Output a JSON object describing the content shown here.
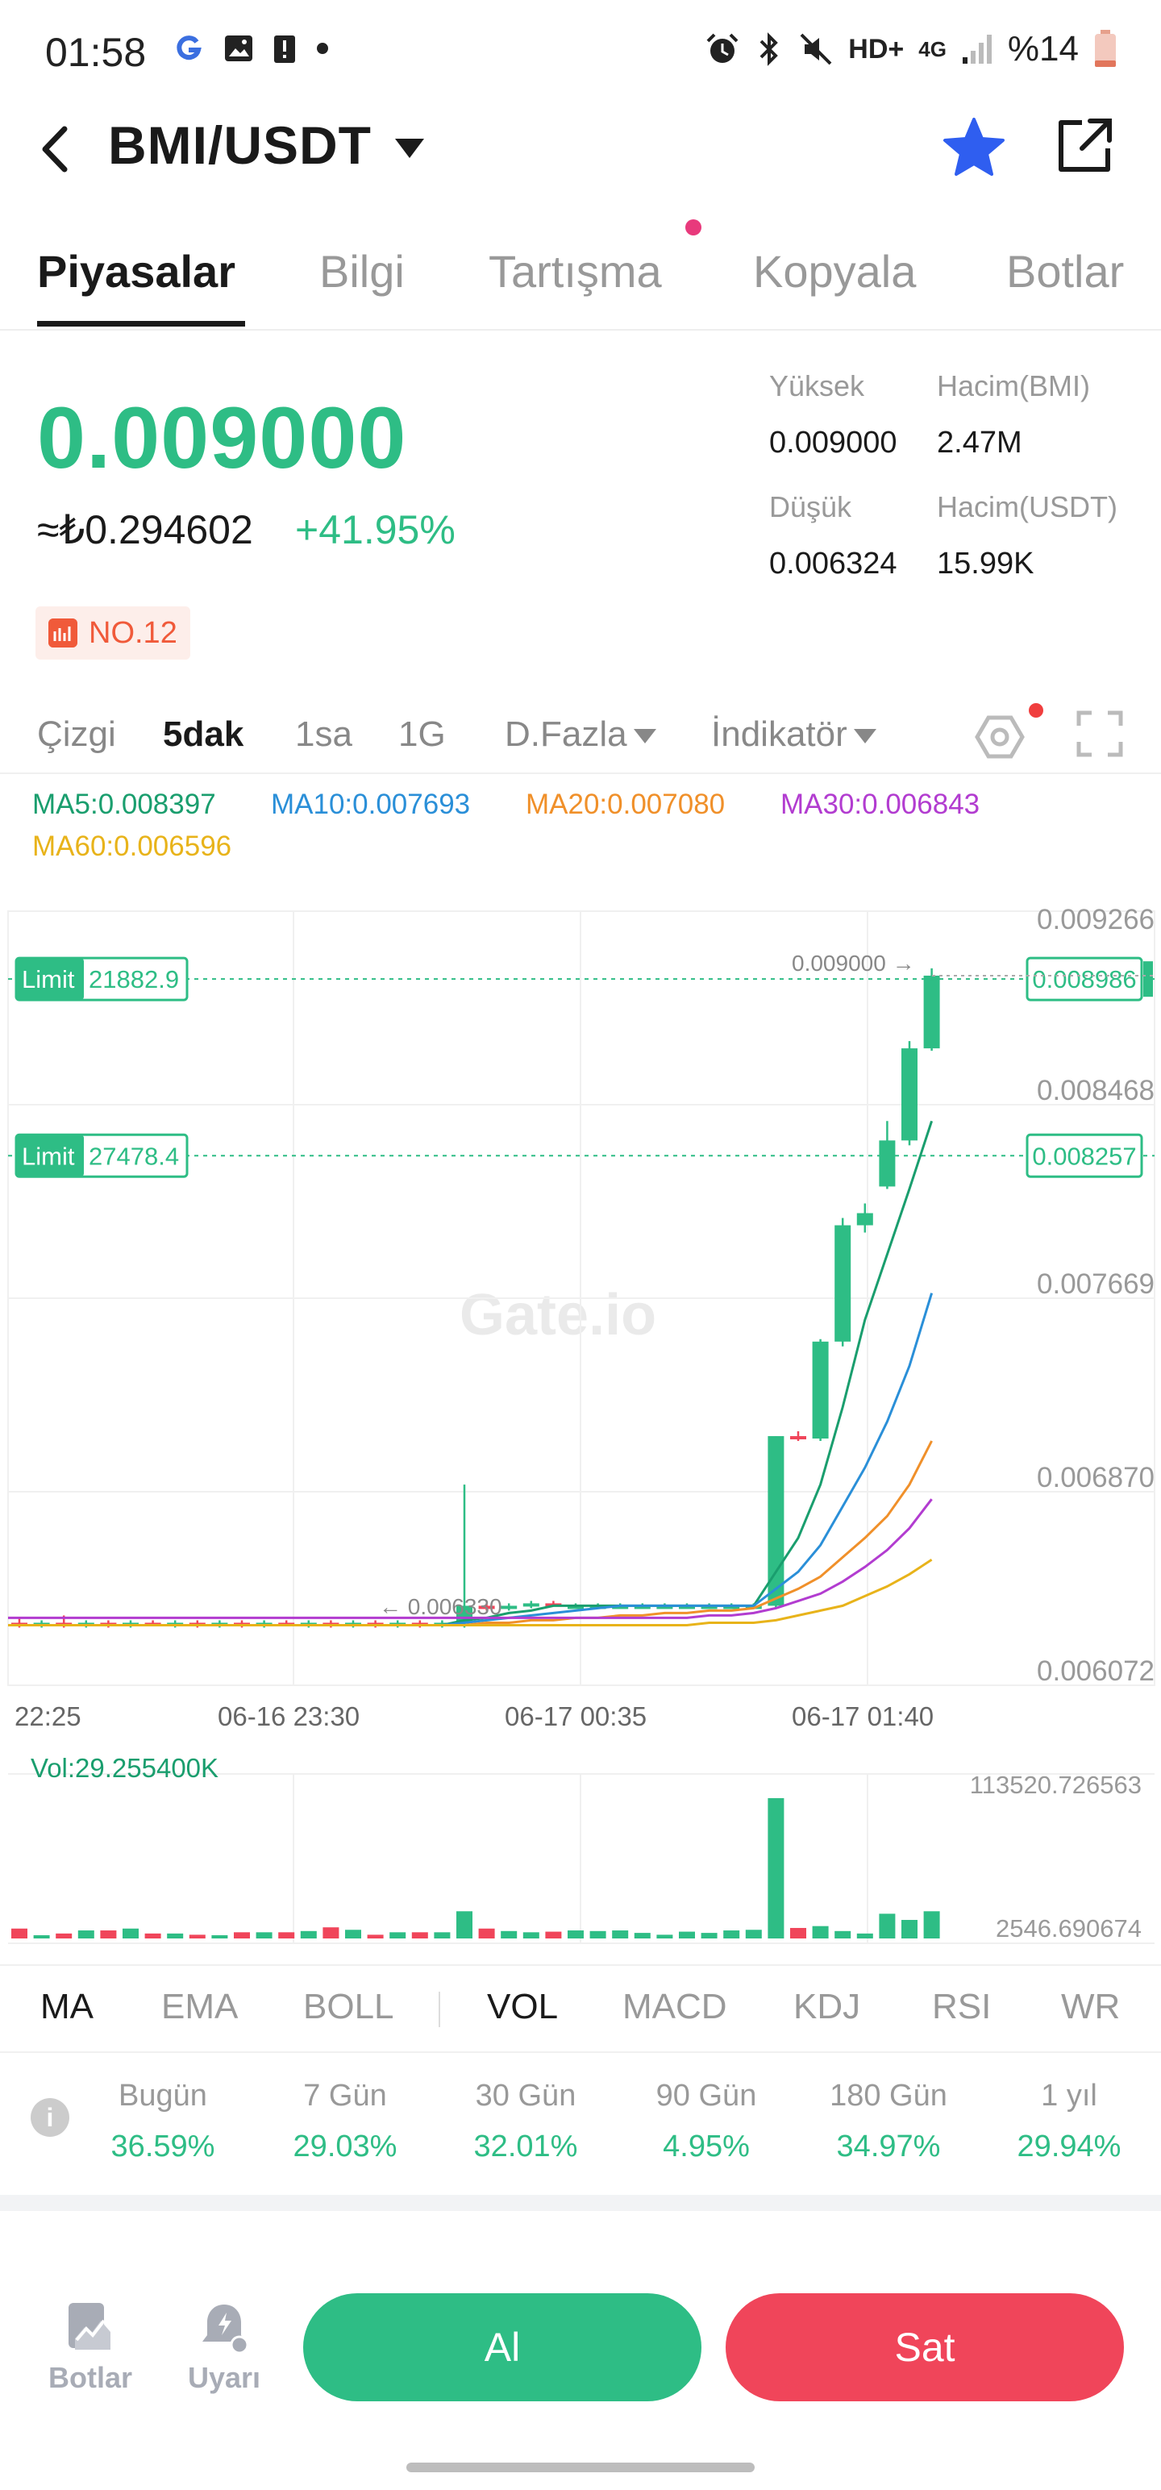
{
  "status_bar": {
    "time": "01:58",
    "battery": "%14",
    "icons_left": [
      "google-icon",
      "image-icon",
      "alert-icon",
      "dot-icon"
    ],
    "icons_right": [
      "alarm-icon",
      "bluetooth-icon",
      "mute-icon",
      "hd-icon",
      "signal-4g-icon",
      "battery-icon"
    ],
    "hd_label": "HD+",
    "net_label": "4G"
  },
  "header": {
    "pair": "BMI/USDT"
  },
  "tabs": [
    "Piyasalar",
    "Bilgi",
    "Tartışma",
    "Kopyala",
    "Botlar"
  ],
  "price": {
    "last": "0.009000",
    "fiat": "≈₺0.294602",
    "change": "+41.95%",
    "rank": "NO.12"
  },
  "stats": {
    "high_label": "Yüksek",
    "high_value": "0.009000",
    "vol_base_label": "Hacim(BMI)",
    "vol_base_value": "2.47M",
    "low_label": "Düşük",
    "low_value": "0.006324",
    "vol_quote_label": "Hacim(USDT)",
    "vol_quote_value": "15.99K"
  },
  "intervals": {
    "line": "Çizgi",
    "m5": "5dak",
    "h1": "1sa",
    "d1": "1G",
    "more": "D.Fazla",
    "indicator": "İndikatör"
  },
  "ma_legend": {
    "ma5": "MA5:0.008397",
    "ma10": "MA10:0.007693",
    "ma20": "MA20:0.007080",
    "ma30": "MA30:0.006843",
    "ma60": "MA60:0.006596"
  },
  "colors": {
    "up": "#2ebd85",
    "down": "#f0455a",
    "ma5": "#1a9e6e",
    "ma10": "#2a8fd8",
    "ma20": "#f0902a",
    "ma30": "#b23cd0",
    "ma60": "#e8b31a"
  },
  "chart_data": {
    "type": "candlestick",
    "y_axis_labels": [
      "0.009266",
      "0.008468",
      "0.007669",
      "0.006870",
      "0.006072"
    ],
    "x_axis_labels": [
      "22:25",
      "06-16 23:30",
      "06-17 00:35",
      "06-17 01:40"
    ],
    "last_price_label": "0.009000",
    "low_marker_label": "0.006330",
    "ylim": [
      0.006072,
      0.009266
    ],
    "orders": [
      {
        "label": "Limit",
        "qty": "21882.9",
        "price": "0.008986",
        "price_value": 0.008986
      },
      {
        "label": "Limit",
        "qty": "27478.4",
        "price": "0.008257",
        "price_value": 0.008257
      }
    ],
    "candles": [
      {
        "o": 0.00633,
        "h": 0.00635,
        "l": 0.00631,
        "c": 0.00632
      },
      {
        "o": 0.00632,
        "h": 0.00634,
        "l": 0.00631,
        "c": 0.00633
      },
      {
        "o": 0.00633,
        "h": 0.00636,
        "l": 0.00631,
        "c": 0.00632
      },
      {
        "o": 0.00632,
        "h": 0.00634,
        "l": 0.00631,
        "c": 0.00633
      },
      {
        "o": 0.00633,
        "h": 0.00634,
        "l": 0.00631,
        "c": 0.00632
      },
      {
        "o": 0.00632,
        "h": 0.00634,
        "l": 0.00631,
        "c": 0.00633
      },
      {
        "o": 0.00633,
        "h": 0.00634,
        "l": 0.00632,
        "c": 0.00632
      },
      {
        "o": 0.00632,
        "h": 0.00634,
        "l": 0.00631,
        "c": 0.00633
      },
      {
        "o": 0.00633,
        "h": 0.00634,
        "l": 0.00631,
        "c": 0.00632
      },
      {
        "o": 0.00632,
        "h": 0.00634,
        "l": 0.00631,
        "c": 0.00633
      },
      {
        "o": 0.00633,
        "h": 0.00634,
        "l": 0.00631,
        "c": 0.00632
      },
      {
        "o": 0.00632,
        "h": 0.00634,
        "l": 0.00631,
        "c": 0.00633
      },
      {
        "o": 0.00633,
        "h": 0.00634,
        "l": 0.00632,
        "c": 0.00632
      },
      {
        "o": 0.00632,
        "h": 0.00634,
        "l": 0.00631,
        "c": 0.00633
      },
      {
        "o": 0.00633,
        "h": 0.00634,
        "l": 0.00631,
        "c": 0.00632
      },
      {
        "o": 0.00632,
        "h": 0.00634,
        "l": 0.00631,
        "c": 0.00633
      },
      {
        "o": 0.00633,
        "h": 0.00634,
        "l": 0.00631,
        "c": 0.00632
      },
      {
        "o": 0.00632,
        "h": 0.00634,
        "l": 0.00631,
        "c": 0.00633
      },
      {
        "o": 0.00633,
        "h": 0.00634,
        "l": 0.00631,
        "c": 0.00632
      },
      {
        "o": 0.00632,
        "h": 0.00634,
        "l": 0.00631,
        "c": 0.00633
      },
      {
        "o": 0.00633,
        "h": 0.0069,
        "l": 0.00631,
        "c": 0.0064
      },
      {
        "o": 0.0064,
        "h": 0.00641,
        "l": 0.00638,
        "c": 0.00639
      },
      {
        "o": 0.00639,
        "h": 0.00641,
        "l": 0.00638,
        "c": 0.0064
      },
      {
        "o": 0.0064,
        "h": 0.00642,
        "l": 0.00639,
        "c": 0.00641
      },
      {
        "o": 0.00641,
        "h": 0.00642,
        "l": 0.0064,
        "c": 0.0064
      },
      {
        "o": 0.0064,
        "h": 0.00641,
        "l": 0.00639,
        "c": 0.0064
      },
      {
        "o": 0.0064,
        "h": 0.00641,
        "l": 0.00639,
        "c": 0.0064
      },
      {
        "o": 0.0064,
        "h": 0.00641,
        "l": 0.00639,
        "c": 0.0064
      },
      {
        "o": 0.0064,
        "h": 0.00641,
        "l": 0.00639,
        "c": 0.0064
      },
      {
        "o": 0.0064,
        "h": 0.00641,
        "l": 0.00639,
        "c": 0.0064
      },
      {
        "o": 0.0064,
        "h": 0.00641,
        "l": 0.00639,
        "c": 0.0064
      },
      {
        "o": 0.0064,
        "h": 0.00641,
        "l": 0.00639,
        "c": 0.0064
      },
      {
        "o": 0.0064,
        "h": 0.00641,
        "l": 0.00639,
        "c": 0.0064
      },
      {
        "o": 0.0064,
        "h": 0.00641,
        "l": 0.00639,
        "c": 0.0064
      },
      {
        "o": 0.0064,
        "h": 0.0071,
        "l": 0.00639,
        "c": 0.0071
      },
      {
        "o": 0.0071,
        "h": 0.00712,
        "l": 0.00708,
        "c": 0.00709
      },
      {
        "o": 0.00709,
        "h": 0.0075,
        "l": 0.00708,
        "c": 0.00749
      },
      {
        "o": 0.00749,
        "h": 0.008,
        "l": 0.00747,
        "c": 0.00797
      },
      {
        "o": 0.00797,
        "h": 0.00806,
        "l": 0.00794,
        "c": 0.00802
      },
      {
        "o": 0.00813,
        "h": 0.0084,
        "l": 0.00812,
        "c": 0.00832
      },
      {
        "o": 0.00832,
        "h": 0.00873,
        "l": 0.0083,
        "c": 0.0087
      },
      {
        "o": 0.0087,
        "h": 0.00903,
        "l": 0.00869,
        "c": 0.009
      }
    ],
    "ma": {
      "ma5": [
        null,
        null,
        null,
        null,
        0.00632,
        0.00632,
        0.00632,
        0.00632,
        0.00632,
        0.00632,
        0.00632,
        0.00632,
        0.00632,
        0.00632,
        0.00632,
        0.00632,
        0.00632,
        0.00632,
        0.00632,
        0.00632,
        0.00634,
        0.00635,
        0.00637,
        0.00638,
        0.0064,
        0.0064,
        0.0064,
        0.0064,
        0.0064,
        0.0064,
        0.0064,
        0.0064,
        0.0064,
        0.0064,
        0.00654,
        0.00668,
        0.0069,
        0.00722,
        0.00758,
        0.00785,
        0.00812,
        0.0084
      ],
      "ma10": [
        null,
        null,
        null,
        null,
        null,
        null,
        null,
        null,
        null,
        0.00632,
        0.00632,
        0.00632,
        0.00632,
        0.00632,
        0.00632,
        0.00632,
        0.00632,
        0.00632,
        0.00632,
        0.00632,
        0.00633,
        0.00634,
        0.00635,
        0.00636,
        0.00637,
        0.00638,
        0.00639,
        0.0064,
        0.0064,
        0.0064,
        0.0064,
        0.0064,
        0.0064,
        0.0064,
        0.00647,
        0.00654,
        0.00665,
        0.00681,
        0.00697,
        0.00716,
        0.00739,
        0.00769
      ],
      "ma20": [
        null,
        null,
        null,
        null,
        null,
        null,
        null,
        null,
        null,
        null,
        null,
        null,
        null,
        null,
        null,
        null,
        null,
        null,
        null,
        0.00632,
        0.00632,
        0.00633,
        0.00633,
        0.00634,
        0.00634,
        0.00635,
        0.00635,
        0.00636,
        0.00636,
        0.00637,
        0.00637,
        0.00638,
        0.00638,
        0.00639,
        0.00643,
        0.00647,
        0.00652,
        0.0066,
        0.00668,
        0.00677,
        0.0069,
        0.00708
      ],
      "ma30": [
        null,
        null,
        null,
        null,
        null,
        null,
        null,
        null,
        null,
        null,
        null,
        null,
        null,
        null,
        null,
        null,
        null,
        null,
        null,
        null,
        null,
        null,
        null,
        null,
        null,
        null,
        null,
        null,
        null,
        0.00635,
        0.00635,
        0.00636,
        0.00636,
        0.00637,
        0.00639,
        0.00642,
        0.00645,
        0.0065,
        0.00656,
        0.00663,
        0.00672,
        0.00684
      ],
      "ma60": [
        null,
        null,
        null,
        null,
        null,
        null,
        null,
        null,
        null,
        null,
        null,
        null,
        null,
        null,
        null,
        null,
        null,
        null,
        null,
        null,
        null,
        null,
        null,
        null,
        null,
        null,
        null,
        null,
        null,
        0.00632,
        0.00632,
        0.00633,
        0.00633,
        0.00633,
        0.00634,
        0.00636,
        0.00638,
        0.0064,
        0.00644,
        0.00648,
        0.00653,
        0.00659
      ]
    },
    "volume": {
      "label": "Vol:29.255400K",
      "max_label": "113520.726563",
      "min_label": "2546.690674",
      "values": [
        8000,
        2500,
        4000,
        6500,
        6500,
        8000,
        4000,
        4000,
        3000,
        2500,
        5000,
        5000,
        5000,
        6000,
        9000,
        7000,
        3000,
        5000,
        5000,
        5000,
        22000,
        8000,
        6000,
        5000,
        5500,
        6500,
        6000,
        6500,
        4500,
        3000,
        5500,
        4500,
        6500,
        7000,
        113520,
        8500,
        10000,
        6000,
        4000,
        20000,
        15000,
        22000
      ]
    }
  },
  "indicator_tabs": {
    "main": [
      "MA",
      "EMA",
      "BOLL"
    ],
    "sub": [
      "VOL",
      "MACD",
      "KDJ",
      "RSI",
      "WR"
    ]
  },
  "performance": [
    {
      "label": "Bugün",
      "value": "36.59%"
    },
    {
      "label": "7 Gün",
      "value": "29.03%"
    },
    {
      "label": "30 Gün",
      "value": "32.01%"
    },
    {
      "label": "90 Gün",
      "value": "4.95%"
    },
    {
      "label": "180 Gün",
      "value": "34.97%"
    },
    {
      "label": "1 yıl",
      "value": "29.94%"
    }
  ],
  "bottom_bar": {
    "bots_label": "Botlar",
    "alert_label": "Uyarı",
    "buy_label": "Al",
    "sell_label": "Sat"
  },
  "watermark": "Gate.io"
}
